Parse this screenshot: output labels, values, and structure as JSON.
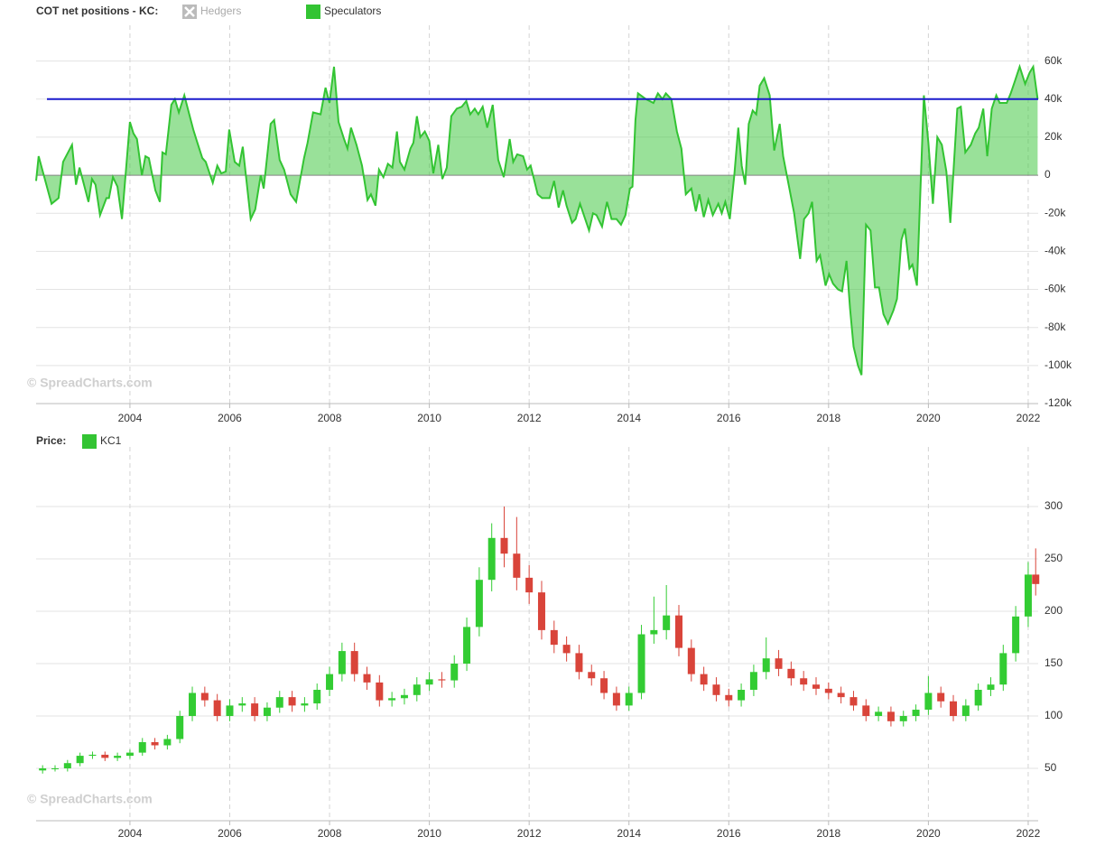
{
  "chart_data": [
    {
      "type": "area",
      "title": "COT net positions - KC:",
      "watermark": "© SpreadCharts.com",
      "xlim": [
        2002.12,
        2022.2
      ],
      "xticks": [
        2004,
        2006,
        2008,
        2010,
        2012,
        2014,
        2016,
        2018,
        2020,
        2022
      ],
      "ylim": [
        -120000,
        75000
      ],
      "yticks": [
        {
          "value": -120000,
          "label": "-120k"
        },
        {
          "value": -100000,
          "label": "-100k"
        },
        {
          "value": -80000,
          "label": "-80k"
        },
        {
          "value": -60000,
          "label": "-60k"
        },
        {
          "value": -40000,
          "label": "-40k"
        },
        {
          "value": -20000,
          "label": "-20k"
        },
        0,
        {
          "value": 20000,
          "label": "20k"
        },
        {
          "value": 40000,
          "label": "40k"
        },
        {
          "value": 60000,
          "label": "60k"
        }
      ],
      "grid": true,
      "hline": {
        "value": 40000,
        "color": "#1a1acc"
      },
      "x": [
        2002.12,
        2002.17,
        2002.43,
        2002.57,
        2002.66,
        2002.84,
        2002.92,
        2002.99,
        2003.17,
        2003.24,
        2003.31,
        2003.4,
        2003.53,
        2003.58,
        2003.66,
        2003.75,
        2003.84,
        2004.0,
        2004.07,
        2004.14,
        2004.24,
        2004.31,
        2004.38,
        2004.51,
        2004.6,
        2004.65,
        2004.72,
        2004.83,
        2004.9,
        2004.98,
        2005.09,
        2005.16,
        2005.27,
        2005.34,
        2005.45,
        2005.52,
        2005.66,
        2005.75,
        2005.83,
        2005.92,
        2005.99,
        2006.1,
        2006.19,
        2006.26,
        2006.42,
        2006.51,
        2006.62,
        2006.68,
        2006.82,
        2006.89,
        2007.0,
        2007.09,
        2007.22,
        2007.33,
        2007.49,
        2007.56,
        2007.67,
        2007.82,
        2007.92,
        2008.0,
        2008.09,
        2008.18,
        2008.29,
        2008.36,
        2008.43,
        2008.54,
        2008.65,
        2008.76,
        2008.83,
        2008.92,
        2008.99,
        2009.08,
        2009.17,
        2009.26,
        2009.35,
        2009.41,
        2009.5,
        2009.62,
        2009.68,
        2009.75,
        2009.82,
        2009.91,
        2010.0,
        2010.08,
        2010.18,
        2010.26,
        2010.35,
        2010.44,
        2010.55,
        2010.65,
        2010.74,
        2010.82,
        2010.91,
        2010.98,
        2011.07,
        2011.16,
        2011.27,
        2011.38,
        2011.49,
        2011.61,
        2011.68,
        2011.76,
        2011.88,
        2011.96,
        2012.03,
        2012.17,
        2012.26,
        2012.41,
        2012.5,
        2012.59,
        2012.68,
        2012.75,
        2012.86,
        2012.93,
        2013.02,
        2013.11,
        2013.2,
        2013.28,
        2013.35,
        2013.46,
        2013.56,
        2013.65,
        2013.75,
        2013.84,
        2013.93,
        2014.02,
        2014.07,
        2014.13,
        2014.18,
        2014.34,
        2014.49,
        2014.58,
        2014.67,
        2014.74,
        2014.85,
        2014.96,
        2015.05,
        2015.14,
        2015.25,
        2015.34,
        2015.41,
        2015.5,
        2015.59,
        2015.68,
        2015.79,
        2015.86,
        2015.93,
        2016.02,
        2016.11,
        2016.19,
        2016.26,
        2016.33,
        2016.4,
        2016.48,
        2016.55,
        2016.62,
        2016.71,
        2016.82,
        2016.91,
        2017.02,
        2017.09,
        2017.2,
        2017.31,
        2017.43,
        2017.51,
        2017.6,
        2017.67,
        2017.76,
        2017.83,
        2017.94,
        2018.01,
        2018.09,
        2018.19,
        2018.27,
        2018.36,
        2018.43,
        2018.5,
        2018.59,
        2018.66,
        2018.75,
        2018.84,
        2018.93,
        2019.01,
        2019.1,
        2019.19,
        2019.3,
        2019.37,
        2019.46,
        2019.53,
        2019.62,
        2019.68,
        2019.77,
        2019.91,
        2020.0,
        2020.09,
        2020.18,
        2020.27,
        2020.36,
        2020.44,
        2020.58,
        2020.65,
        2020.74,
        2020.85,
        2020.94,
        2021.01,
        2021.1,
        2021.18,
        2021.27,
        2021.36,
        2021.43,
        2021.57,
        2021.65,
        2021.74,
        2021.83,
        2021.94,
        2022.03,
        2022.1,
        2022.19
      ],
      "series": [
        {
          "name": "Hedgers",
          "color": "#bbbbbb",
          "visible": false
        },
        {
          "name": "Speculators",
          "color": "#33c433",
          "visible": true,
          "values": [
            -3000,
            10000,
            -15000,
            -12000,
            7000,
            16000,
            -5000,
            4000,
            -14000,
            -2000,
            -5000,
            -21000,
            -12000,
            -12000,
            -1000,
            -6000,
            -23000,
            28000,
            22000,
            19000,
            0,
            10000,
            9000,
            -8000,
            -14000,
            12000,
            11000,
            37000,
            40000,
            33000,
            42000,
            35000,
            24000,
            18000,
            9000,
            7000,
            -4000,
            5000,
            1000,
            2000,
            24000,
            7000,
            5000,
            15000,
            -23000,
            -18000,
            0,
            -7000,
            27000,
            29000,
            8000,
            3000,
            -10000,
            -14000,
            9000,
            17000,
            33000,
            32000,
            46000,
            38000,
            57000,
            28000,
            19000,
            14000,
            25000,
            16000,
            5000,
            -13000,
            -10000,
            -16000,
            3000,
            -1000,
            6000,
            4000,
            23000,
            7000,
            3000,
            14000,
            17000,
            31000,
            20000,
            23000,
            18000,
            1000,
            16000,
            -2000,
            4000,
            31000,
            35000,
            36000,
            39000,
            32000,
            35000,
            32000,
            36000,
            25000,
            37000,
            8000,
            -1000,
            19000,
            7000,
            11000,
            10000,
            3000,
            5000,
            -10000,
            -12000,
            -12000,
            -3000,
            -17000,
            -8000,
            -16000,
            -25000,
            -23000,
            -15000,
            -22000,
            -29000,
            -20000,
            -21000,
            -27000,
            -14000,
            -23000,
            -23000,
            -26000,
            -21000,
            -7000,
            -6000,
            29000,
            43000,
            40000,
            38000,
            43000,
            40000,
            43000,
            40000,
            23000,
            14000,
            -10000,
            -7000,
            -19000,
            -10000,
            -22000,
            -13000,
            -21000,
            -15000,
            -20000,
            -14000,
            -23000,
            0,
            25000,
            5000,
            -5000,
            27000,
            34000,
            32000,
            47000,
            51000,
            42000,
            13000,
            27000,
            10000,
            -5000,
            -20000,
            -44000,
            -23000,
            -20000,
            -14000,
            -45000,
            -42000,
            -58000,
            -52000,
            -57000,
            -60000,
            -61000,
            -45000,
            -70000,
            -90000,
            -100000,
            -105000,
            -26000,
            -29000,
            -59000,
            -59000,
            -73000,
            -78000,
            -71000,
            -65000,
            -34000,
            -28000,
            -49000,
            -47000,
            -58000,
            42000,
            17000,
            -15000,
            20000,
            16000,
            2000,
            -25000,
            35000,
            36000,
            12000,
            16000,
            22000,
            25000,
            35000,
            10000,
            35000,
            42000,
            38000,
            38000,
            43000,
            50000,
            57000,
            48000,
            54000,
            57000,
            40000
          ]
        }
      ]
    },
    {
      "type": "candlestick",
      "title": "Price:",
      "watermark": "© SpreadCharts.com",
      "xlim": [
        2002.12,
        2022.2
      ],
      "xticks": [
        2004,
        2006,
        2008,
        2010,
        2012,
        2014,
        2016,
        2018,
        2020,
        2022
      ],
      "ylim": [
        0,
        350
      ],
      "yticks": [
        50,
        100,
        150,
        200,
        250,
        300
      ],
      "grid": true,
      "x": [
        2002.25,
        2002.5,
        2002.75,
        2003,
        2003.25,
        2003.5,
        2003.75,
        2004,
        2004.25,
        2004.5,
        2004.75,
        2005,
        2005.25,
        2005.5,
        2005.75,
        2006,
        2006.25,
        2006.5,
        2006.75,
        2007,
        2007.25,
        2007.5,
        2007.75,
        2008,
        2008.25,
        2008.5,
        2008.75,
        2009,
        2009.25,
        2009.5,
        2009.75,
        2010,
        2010.25,
        2010.5,
        2010.75,
        2011,
        2011.25,
        2011.5,
        2011.75,
        2012,
        2012.25,
        2012.5,
        2012.75,
        2013,
        2013.25,
        2013.5,
        2013.75,
        2014,
        2014.25,
        2014.5,
        2014.75,
        2015,
        2015.25,
        2015.5,
        2015.75,
        2016,
        2016.25,
        2016.5,
        2016.75,
        2017,
        2017.25,
        2017.5,
        2017.75,
        2018,
        2018.25,
        2018.5,
        2018.75,
        2019,
        2019.25,
        2019.5,
        2019.75,
        2020,
        2020.25,
        2020.5,
        2020.75,
        2021,
        2021.25,
        2021.5,
        2021.75,
        2022,
        2022.15
      ],
      "series": [
        {
          "name": "KC1",
          "color": "#33c433",
          "up_color": "#33cc33",
          "down_color": "#d9443a",
          "open": [
            48,
            50,
            50,
            55,
            62,
            63,
            60,
            62,
            65,
            75,
            72,
            78,
            100,
            122,
            115,
            100,
            110,
            112,
            100,
            108,
            118,
            110,
            112,
            125,
            140,
            162,
            140,
            132,
            115,
            117,
            120,
            130,
            135,
            134,
            150,
            185,
            230,
            270,
            255,
            232,
            218,
            182,
            168,
            160,
            142,
            136,
            122,
            110,
            122,
            178,
            182,
            196,
            165,
            140,
            130,
            120,
            115,
            125,
            142,
            155,
            145,
            136,
            130,
            126,
            122,
            118,
            110,
            100,
            104,
            95,
            100,
            106,
            122,
            114,
            100,
            110,
            125,
            130,
            160,
            195,
            235
          ],
          "high": [
            53,
            53,
            58,
            65,
            66,
            66,
            65,
            68,
            79,
            79,
            82,
            105,
            128,
            128,
            121,
            116,
            118,
            118,
            113,
            124,
            124,
            118,
            131,
            147,
            170,
            170,
            147,
            139,
            123,
            126,
            137,
            142,
            142,
            158,
            194,
            242,
            284,
            300,
            290,
            244,
            229,
            191,
            176,
            168,
            149,
            143,
            128,
            128,
            187,
            214,
            225,
            206,
            173,
            147,
            137,
            126,
            131,
            149,
            175,
            163,
            152,
            143,
            137,
            132,
            128,
            124,
            116,
            109,
            109,
            105,
            111,
            138,
            128,
            120,
            116,
            131,
            137,
            168,
            205,
            247,
            260
          ],
          "low": [
            45,
            47,
            47,
            52,
            59,
            57,
            57,
            59,
            62,
            68,
            68,
            74,
            95,
            109,
            95,
            95,
            104,
            95,
            95,
            103,
            104,
            104,
            106,
            119,
            133,
            133,
            125,
            109,
            109,
            111,
            114,
            124,
            127,
            127,
            143,
            176,
            219,
            242,
            220,
            207,
            173,
            160,
            152,
            135,
            129,
            116,
            105,
            105,
            116,
            169,
            173,
            157,
            133,
            124,
            114,
            109,
            109,
            119,
            135,
            138,
            129,
            124,
            120,
            116,
            112,
            105,
            95,
            95,
            90,
            90,
            95,
            101,
            108,
            95,
            95,
            105,
            119,
            124,
            152,
            185,
            215
          ],
          "close": [
            50,
            50,
            55,
            62,
            63,
            60,
            62,
            65,
            75,
            72,
            78,
            100,
            122,
            115,
            100,
            110,
            112,
            100,
            108,
            118,
            110,
            112,
            125,
            140,
            162,
            140,
            132,
            115,
            117,
            120,
            130,
            135,
            134,
            150,
            185,
            230,
            270,
            255,
            232,
            218,
            182,
            168,
            160,
            142,
            136,
            122,
            110,
            122,
            178,
            182,
            196,
            165,
            140,
            130,
            120,
            115,
            125,
            142,
            155,
            145,
            136,
            130,
            126,
            122,
            118,
            110,
            100,
            104,
            95,
            100,
            106,
            122,
            114,
            100,
            110,
            125,
            130,
            160,
            195,
            235,
            226
          ]
        }
      ]
    }
  ]
}
